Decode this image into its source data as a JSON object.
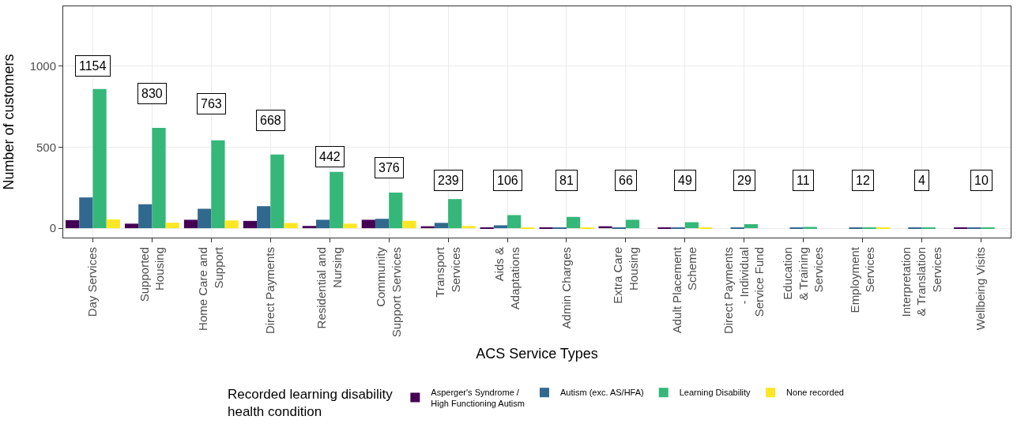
{
  "chart_data": {
    "type": "bar",
    "xlabel": "ACS Service Types",
    "ylabel": "Number of customers",
    "legend_title": "Recorded learning disability\nhealth condition",
    "categories": [
      "Day Services",
      "Supported\nHousing",
      "Home Care and\nSupport",
      "Direct Payments",
      "Residential and\nNursing",
      "Community\nSupport Services",
      "Transport\nServices",
      "Aids &\nAdaptations",
      "Admin Charges",
      "Extra Care\nHousing",
      "Adult Placement\nScheme",
      "Direct Payments\n- Individual\nService Fund",
      "Education\n& Training\nServices",
      "Employment\nServices",
      "Interpretation\n& Translation\nServices",
      "Wellbeing Visits"
    ],
    "series": [
      {
        "name": "Asperger's Syndrome /\nHigh Functioning Autism",
        "color": "#440154",
        "values": [
          50,
          28,
          52,
          45,
          14,
          52,
          12,
          3,
          4,
          12,
          3,
          null,
          null,
          null,
          null,
          4
        ]
      },
      {
        "name": "Autism (exc. AS/HFA)",
        "color": "#31688e",
        "values": [
          190,
          148,
          120,
          136,
          52,
          58,
          33,
          18,
          3,
          2,
          4,
          4,
          3,
          3,
          1,
          3
        ]
      },
      {
        "name": "Learning Disability",
        "color": "#35b779",
        "values": [
          860,
          620,
          543,
          455,
          348,
          220,
          180,
          81,
          70,
          52,
          37,
          25,
          8,
          5,
          3,
          3
        ]
      },
      {
        "name": "None recorded",
        "color": "#fde725",
        "values": [
          54,
          34,
          48,
          32,
          28,
          46,
          14,
          4,
          4,
          null,
          5,
          null,
          null,
          4,
          null,
          null
        ]
      }
    ],
    "annotations": [
      {
        "text": "1154",
        "x": "Day Services",
        "y": 1000
      },
      {
        "text": "830",
        "x": "Supported\nHousing",
        "y": 833
      },
      {
        "text": "763",
        "x": "Home Care and\nSupport",
        "y": 770
      },
      {
        "text": "668",
        "x": "Direct Payments",
        "y": 667
      },
      {
        "text": "442",
        "x": "Residential and\nNursing",
        "y": 441
      },
      {
        "text": "376",
        "x": "Community\nSupport Services",
        "y": 373
      },
      {
        "text": "239",
        "x": "Transport\nServices",
        "y": 294
      },
      {
        "text": "106",
        "x": "Aids &\nAdaptations",
        "y": 294
      },
      {
        "text": "81",
        "x": "Admin Charges",
        "y": 294
      },
      {
        "text": "66",
        "x": "Extra Care\nHousing",
        "y": 294
      },
      {
        "text": "49",
        "x": "Adult Placement\nScheme",
        "y": 294
      },
      {
        "text": "29",
        "x": "Direct Payments\n- Individual\nService Fund",
        "y": 294
      },
      {
        "text": "11",
        "x": "Education\n& Training\nServices",
        "y": 294
      },
      {
        "text": "12",
        "x": "Employment\nServices",
        "y": 294
      },
      {
        "text": "4",
        "x": "Interpretation\n& Translation\nServices",
        "y": 294
      },
      {
        "text": "10",
        "x": "Wellbeing Visits",
        "y": 294
      }
    ],
    "ylim": [
      -58,
      1370
    ],
    "yticks": [
      0,
      500,
      1000
    ],
    "grid": true,
    "legend": "bottom"
  }
}
